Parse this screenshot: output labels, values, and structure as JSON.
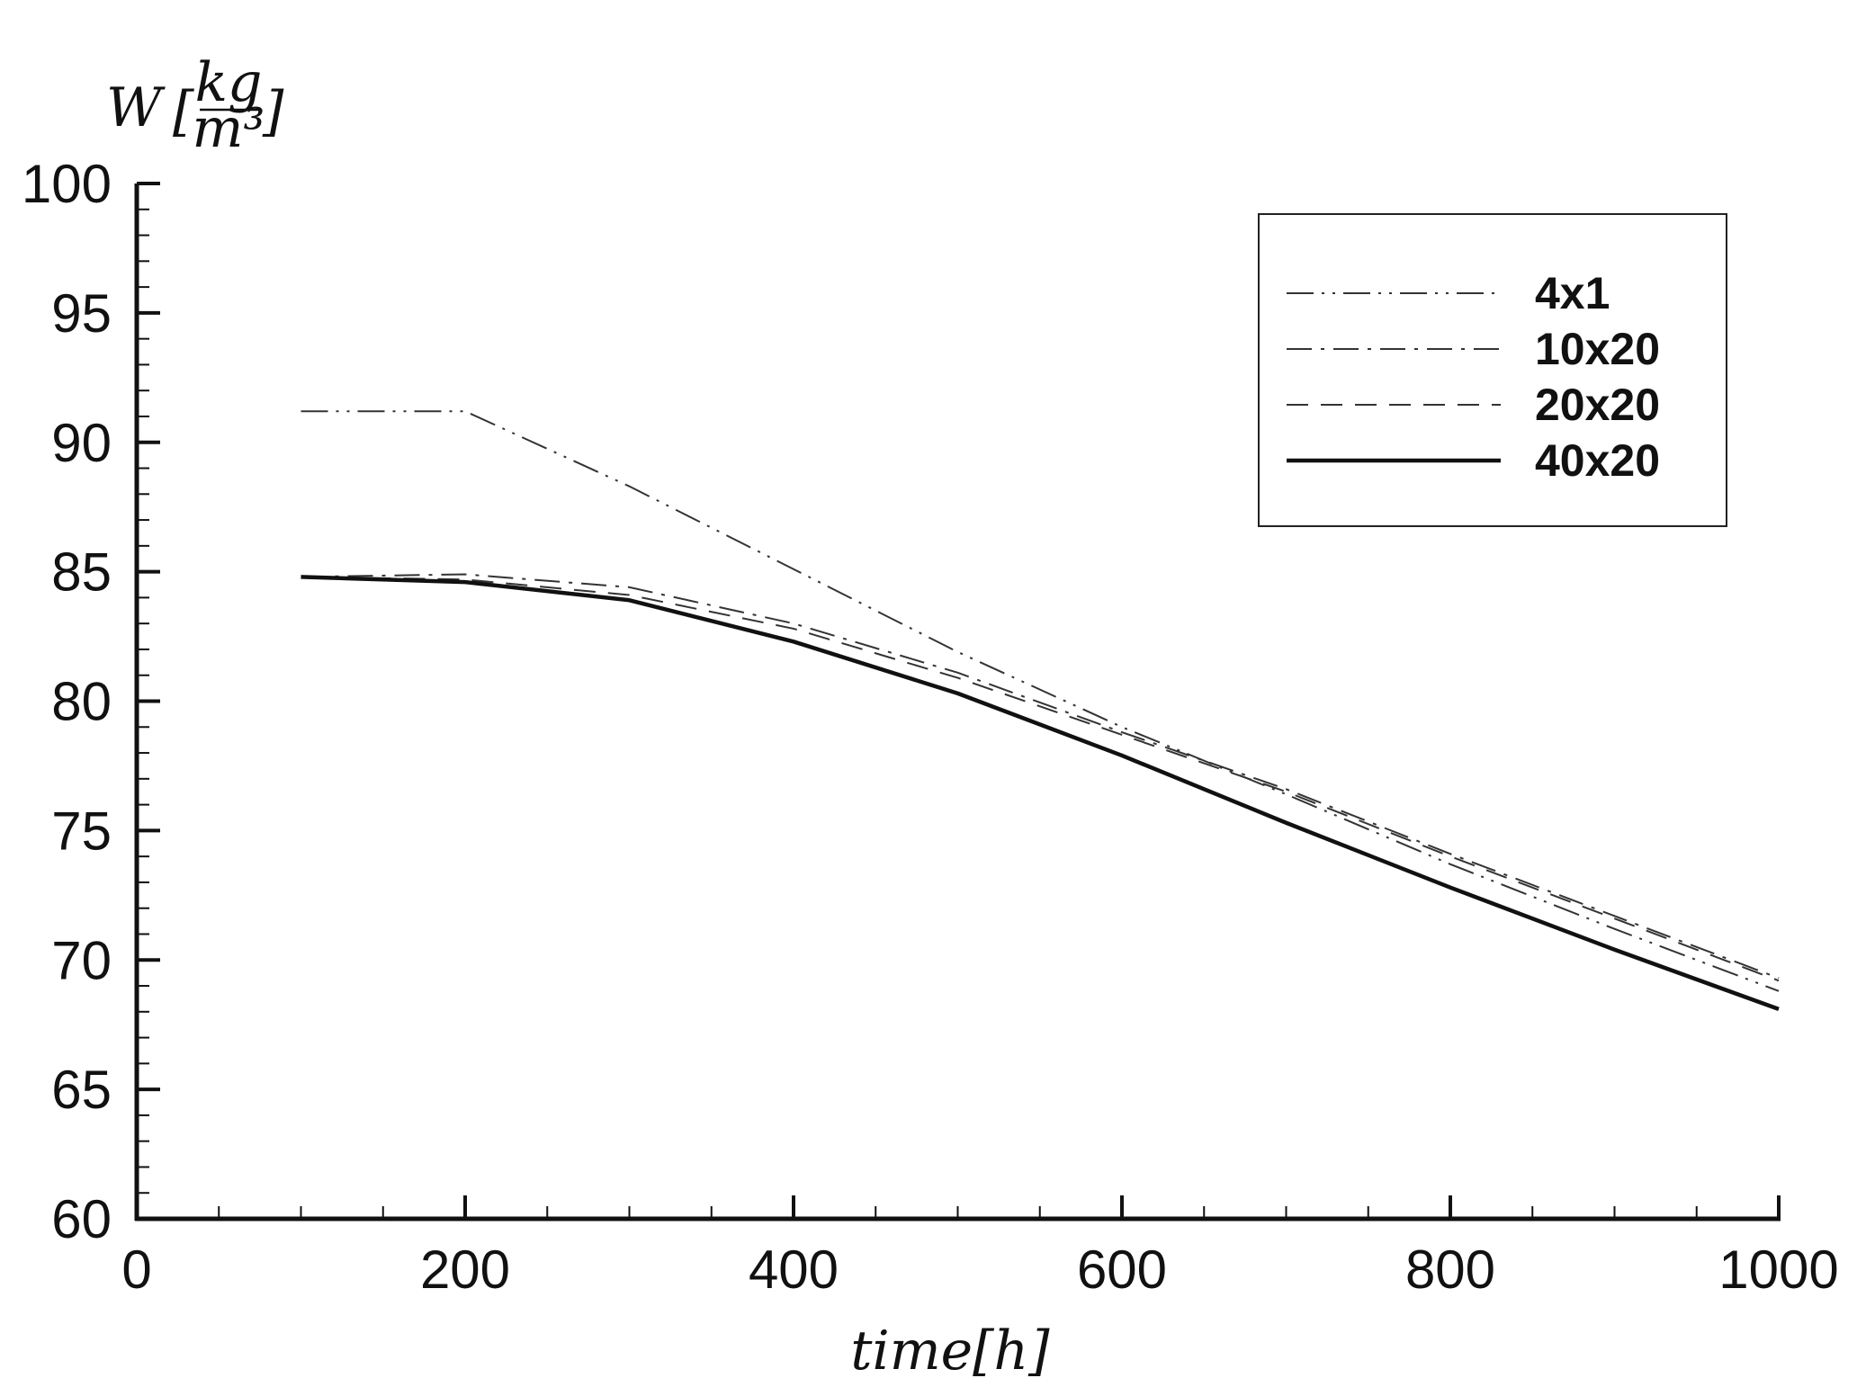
{
  "chart_data": {
    "type": "line",
    "title": "",
    "xlabel": "time[h]",
    "ylabel_main": "W",
    "ylabel_unit_num": "kg",
    "ylabel_unit_den": "m³",
    "xlim": [
      0,
      1000
    ],
    "ylim": [
      60,
      100
    ],
    "x_ticks": [
      0,
      200,
      400,
      600,
      800,
      1000
    ],
    "y_ticks": [
      60,
      65,
      70,
      75,
      80,
      85,
      90,
      95,
      100
    ],
    "x_tick_labels": [
      "0",
      "200",
      "400",
      "600",
      "800",
      "1000"
    ],
    "y_tick_labels": [
      "60",
      "65",
      "70",
      "75",
      "80",
      "85",
      "90",
      "95",
      "100"
    ],
    "grid": false,
    "legend_position": "top-right",
    "x": [
      100,
      200,
      300,
      400,
      500,
      600,
      700,
      800,
      900,
      1000
    ],
    "series": [
      {
        "name": "4x1",
        "style": "dash-dot-dot",
        "values": [
          91.2,
          91.2,
          88.3,
          85.1,
          81.9,
          79.0,
          76.4,
          73.7,
          71.2,
          68.8
        ]
      },
      {
        "name": "10x20",
        "style": "dash-dot",
        "values": [
          84.8,
          84.9,
          84.4,
          83.0,
          81.1,
          78.8,
          76.6,
          74.1,
          71.7,
          69.3
        ]
      },
      {
        "name": "20x20",
        "style": "dashed",
        "values": [
          84.8,
          84.7,
          84.1,
          82.8,
          80.9,
          78.7,
          76.5,
          74.0,
          71.6,
          69.2
        ]
      },
      {
        "name": "40x20",
        "style": "solid",
        "values": [
          84.8,
          84.6,
          83.9,
          82.3,
          80.3,
          77.9,
          75.3,
          72.8,
          70.4,
          68.1
        ]
      }
    ]
  }
}
